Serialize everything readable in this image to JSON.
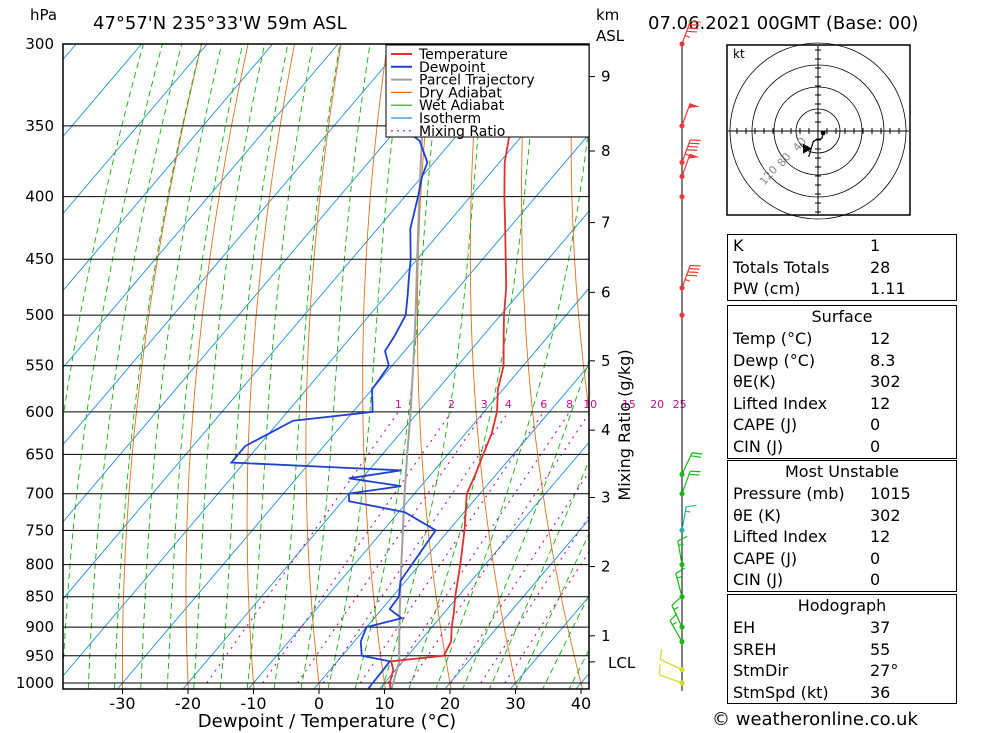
{
  "header": {
    "location": "47°57'N  235°33'W  59m  ASL",
    "datetime": "07.06.2021  00GMT  (Base: 00)",
    "pressure_unit": "hPa",
    "height_unit": "km",
    "height_unit2": "ASL"
  },
  "chart_data": {
    "type": "skew-t log-p",
    "xlabel": "Dewpoint / Temperature (°C)",
    "ylabel_left": "hPa",
    "ylabel_right": "Mixing Ratio (g/kg)",
    "temp_ticks": [
      -30,
      -20,
      -10,
      0,
      10,
      20,
      30,
      40
    ],
    "pressure_levels": [
      300,
      350,
      400,
      450,
      500,
      550,
      600,
      650,
      700,
      750,
      800,
      850,
      900,
      950,
      1000
    ],
    "height_ticks": [
      {
        "label": "1",
        "p": 915
      },
      {
        "label": "2",
        "p": 803
      },
      {
        "label": "3",
        "p": 705
      },
      {
        "label": "4",
        "p": 621
      },
      {
        "label": "5",
        "p": 545
      },
      {
        "label": "6",
        "p": 479
      },
      {
        "label": "7",
        "p": 420
      },
      {
        "label": "8",
        "p": 367
      },
      {
        "label": "9",
        "p": 319
      }
    ],
    "lcl": {
      "label": "LCL",
      "p": 961
    },
    "mixing_ratio_labels": [
      "1",
      "2",
      "3",
      "4",
      "6",
      "8",
      "10",
      "15",
      "20",
      "25"
    ],
    "mixing_ratio_values": [
      1,
      2,
      3,
      4,
      6,
      8,
      10,
      15,
      20,
      25
    ],
    "legend": [
      "Temperature",
      "Dewpoint",
      "Parcel Trajectory",
      "Dry Adiabat",
      "Wet Adiabat",
      "Isotherm",
      "Mixing Ratio"
    ],
    "colors": {
      "temperature": "#e03030",
      "dewpoint": "#2040d0",
      "parcel": "#a0a0a0",
      "dry_adiabat": "#e07020",
      "wet_adiabat": "#10b010",
      "isotherm": "#2090e0",
      "mixing_ratio": "#c0108a"
    },
    "temperature": [
      [
        1015,
        12.0
      ],
      [
        1000,
        10.8
      ],
      [
        975,
        9.6
      ],
      [
        960,
        8.2
      ],
      [
        950,
        15.5
      ],
      [
        925,
        14.8
      ],
      [
        900,
        13.0
      ],
      [
        875,
        11.4
      ],
      [
        850,
        9.6
      ],
      [
        800,
        6.2
      ],
      [
        750,
        2.4
      ],
      [
        700,
        -2.0
      ],
      [
        675,
        -3.2
      ],
      [
        650,
        -4.6
      ],
      [
        625,
        -6.0
      ],
      [
        600,
        -8.0
      ],
      [
        575,
        -10.8
      ],
      [
        550,
        -13.0
      ],
      [
        525,
        -16.2
      ],
      [
        500,
        -19.5
      ],
      [
        475,
        -22.7
      ],
      [
        450,
        -26.5
      ],
      [
        425,
        -30.5
      ],
      [
        400,
        -34.8
      ],
      [
        375,
        -39.2
      ],
      [
        350,
        -43.0
      ],
      [
        325,
        -48.0
      ],
      [
        300,
        -53.0
      ]
    ],
    "dewpoint": [
      [
        1015,
        8.3
      ],
      [
        1000,
        8.2
      ],
      [
        975,
        8.1
      ],
      [
        960,
        8.0
      ],
      [
        950,
        3.0
      ],
      [
        925,
        1.0
      ],
      [
        900,
        0.0
      ],
      [
        885,
        4.2
      ],
      [
        870,
        1.2
      ],
      [
        850,
        1.0
      ],
      [
        825,
        -0.8
      ],
      [
        800,
        -1.2
      ],
      [
        750,
        -2.0
      ],
      [
        725,
        -9.0
      ],
      [
        710,
        -19.0
      ],
      [
        700,
        -20.0
      ],
      [
        690,
        -13.0
      ],
      [
        680,
        -22.0
      ],
      [
        670,
        -15.0
      ],
      [
        660,
        -42.0
      ],
      [
        640,
        -42.0
      ],
      [
        610,
        -38.0
      ],
      [
        600,
        -27.0
      ],
      [
        575,
        -30.0
      ],
      [
        550,
        -30.5
      ],
      [
        535,
        -33.0
      ],
      [
        520,
        -33.5
      ],
      [
        500,
        -34.5
      ],
      [
        480,
        -37.0
      ],
      [
        465,
        -39.0
      ],
      [
        450,
        -41.0
      ],
      [
        425,
        -45.0
      ],
      [
        400,
        -48.0
      ],
      [
        385,
        -50.0
      ],
      [
        375,
        -51.0
      ],
      [
        360,
        -55.0
      ],
      [
        350,
        -60.0
      ],
      [
        300,
        -72.0
      ]
    ],
    "parcel": [
      [
        1015,
        12.0
      ],
      [
        961,
        9.5
      ],
      [
        900,
        5.0
      ],
      [
        850,
        1.2
      ],
      [
        800,
        -2.8
      ],
      [
        750,
        -7.0
      ],
      [
        700,
        -11.5
      ],
      [
        650,
        -16.2
      ],
      [
        600,
        -21.2
      ],
      [
        550,
        -26.8
      ],
      [
        500,
        -33.0
      ],
      [
        450,
        -40.0
      ],
      [
        400,
        -47.8
      ],
      [
        350,
        -56.5
      ],
      [
        300,
        -66.0
      ]
    ],
    "wind_barbs": [
      {
        "p": 1000,
        "dir": 290,
        "spd": 10,
        "color": "yellow"
      },
      {
        "p": 975,
        "dir": 295,
        "spd": 10,
        "color": "yellow"
      },
      {
        "p": 925,
        "dir": 330,
        "spd": 15,
        "color": "green"
      },
      {
        "p": 900,
        "dir": 335,
        "spd": 15,
        "color": "green"
      },
      {
        "p": 850,
        "dir": 345,
        "spd": 15,
        "color": "green"
      },
      {
        "p": 800,
        "dir": 350,
        "spd": 15,
        "color": "green"
      },
      {
        "p": 750,
        "dir": 10,
        "spd": 15,
        "color": "teal"
      },
      {
        "p": 700,
        "dir": 20,
        "spd": 20,
        "color": "green"
      },
      {
        "p": 675,
        "dir": 25,
        "spd": 20,
        "color": "green"
      },
      {
        "p": 500,
        "dir": 0,
        "spd": 0,
        "color": "red"
      },
      {
        "p": 475,
        "dir": 20,
        "spd": 45,
        "color": "red"
      },
      {
        "p": 400,
        "dir": 0,
        "spd": 0,
        "color": "red"
      },
      {
        "p": 385,
        "dir": 20,
        "spd": 50,
        "color": "red"
      },
      {
        "p": 375,
        "dir": 20,
        "spd": 45,
        "color": "red"
      },
      {
        "p": 350,
        "dir": 20,
        "spd": 50,
        "color": "red"
      },
      {
        "p": 300,
        "dir": 20,
        "spd": 45,
        "color": "red"
      }
    ]
  },
  "hodograph": {
    "unit": "kt",
    "ring_labels": [
      "40",
      "80",
      "120"
    ],
    "storm_motion": {
      "dir": 27,
      "spd": 36
    }
  },
  "indices": {
    "rows": [
      {
        "label": "K",
        "value": "1"
      },
      {
        "label": "Totals Totals",
        "value": "28"
      },
      {
        "label": "PW (cm)",
        "value": "1.11"
      }
    ]
  },
  "surface": {
    "title": "Surface",
    "rows": [
      {
        "label": "Temp (°C)",
        "value": "12"
      },
      {
        "label": "Dewp (°C)",
        "value": "8.3"
      },
      {
        "label": "θE(K)",
        "value": "302"
      },
      {
        "label": "Lifted Index",
        "value": "12"
      },
      {
        "label": "CAPE (J)",
        "value": "0"
      },
      {
        "label": "CIN (J)",
        "value": "0"
      }
    ]
  },
  "most_unstable": {
    "title": "Most Unstable",
    "rows": [
      {
        "label": "Pressure (mb)",
        "value": "1015"
      },
      {
        "label": "θE (K)",
        "value": "302"
      },
      {
        "label": "Lifted Index",
        "value": "12"
      },
      {
        "label": "CAPE (J)",
        "value": "0"
      },
      {
        "label": "CIN (J)",
        "value": "0"
      }
    ]
  },
  "hodograph_table": {
    "title": "Hodograph",
    "rows": [
      {
        "label": "EH",
        "value": "37"
      },
      {
        "label": "SREH",
        "value": "55"
      },
      {
        "label": "StmDir",
        "value": "27°"
      },
      {
        "label": "StmSpd (kt)",
        "value": "36"
      }
    ]
  },
  "footer": {
    "text": "© weatheronline.co.uk"
  }
}
